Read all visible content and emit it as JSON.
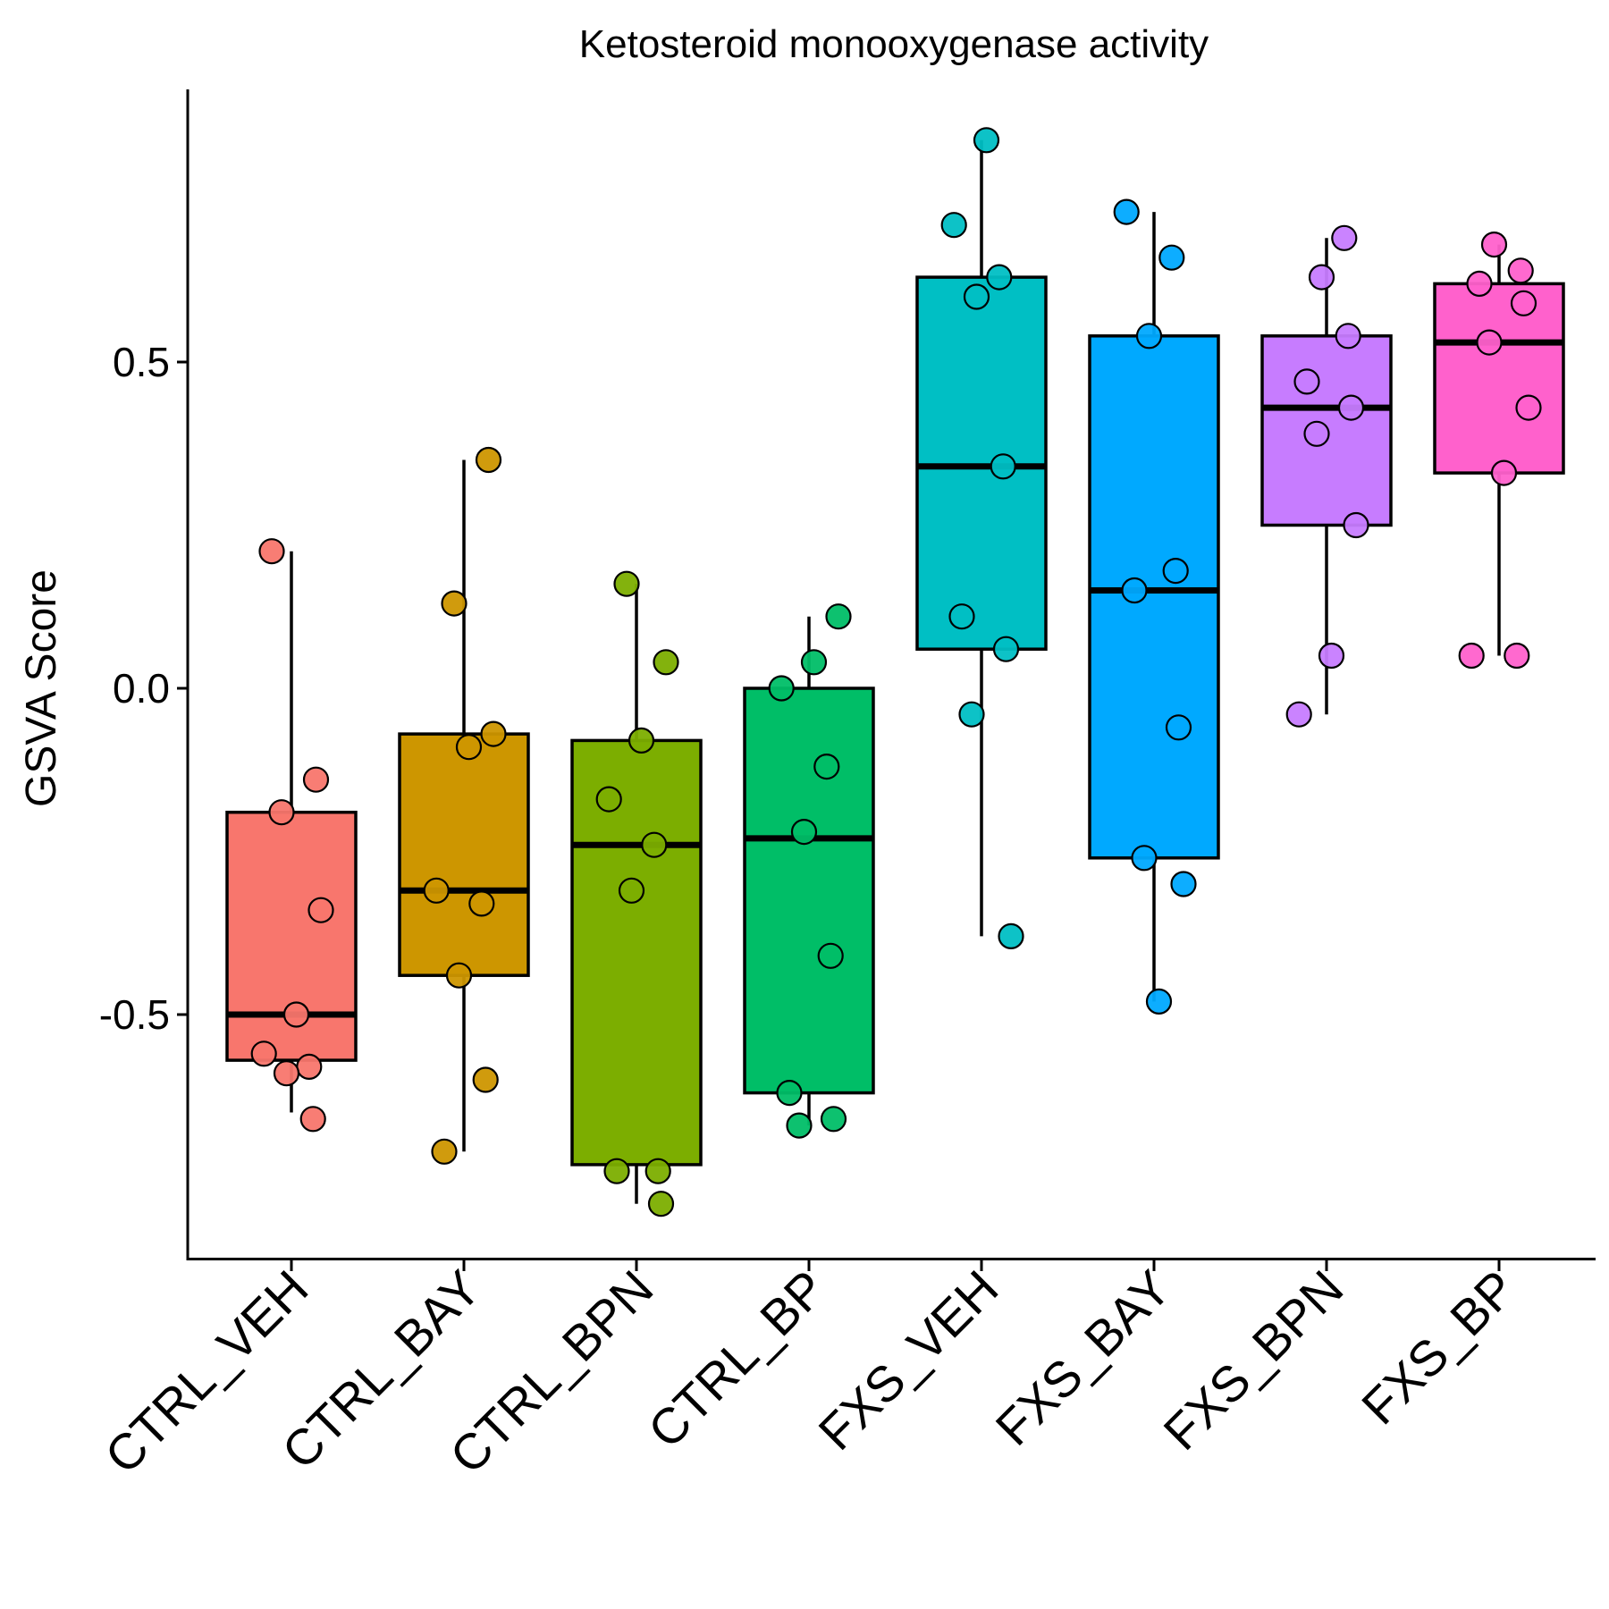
{
  "chart_data": {
    "type": "box",
    "title": "Ketosteroid monooxygenase activity",
    "xlabel": "",
    "ylabel": "GSVA Score",
    "ylim": [
      -0.86,
      0.88
    ],
    "yticks": [
      -0.5,
      0.0,
      0.5
    ],
    "ytick_labels": [
      "-0.5",
      "0.0",
      "0.5"
    ],
    "grid": false,
    "legend": "none",
    "groups": [
      {
        "name": "CTRL_VEH",
        "color": "#F8766D",
        "box": {
          "min": -0.65,
          "q1": -0.57,
          "median": -0.5,
          "q3": -0.19,
          "max": 0.21
        },
        "points": [
          0.21,
          -0.14,
          -0.19,
          -0.34,
          -0.5,
          -0.56,
          -0.58,
          -0.59,
          -0.66
        ]
      },
      {
        "name": "CTRL_BAY",
        "color": "#CD9600",
        "box": {
          "min": -0.71,
          "q1": -0.44,
          "median": -0.31,
          "q3": -0.07,
          "max": 0.35
        },
        "points": [
          0.35,
          0.13,
          -0.07,
          -0.09,
          -0.31,
          -0.33,
          -0.44,
          -0.6,
          -0.71
        ]
      },
      {
        "name": "CTRL_BPN",
        "color": "#7CAE00",
        "box": {
          "min": -0.79,
          "q1": -0.73,
          "median": -0.24,
          "q3": -0.08,
          "max": 0.16
        },
        "points": [
          0.16,
          0.04,
          -0.08,
          -0.17,
          -0.24,
          -0.31,
          -0.74,
          -0.74,
          -0.79
        ]
      },
      {
        "name": "CTRL_BP",
        "color": "#00BE67",
        "box": {
          "min": -0.67,
          "q1": -0.62,
          "median": -0.23,
          "q3": 0.0,
          "max": 0.11
        },
        "points": [
          0.11,
          0.04,
          0.0,
          -0.12,
          -0.22,
          -0.41,
          -0.62,
          -0.66,
          -0.67
        ]
      },
      {
        "name": "FXS_VEH",
        "color": "#00BFC4",
        "box": {
          "min": -0.38,
          "q1": 0.06,
          "median": 0.34,
          "q3": 0.63,
          "max": 0.84
        },
        "points": [
          0.84,
          0.71,
          0.63,
          0.6,
          0.34,
          0.11,
          0.06,
          -0.04,
          -0.38
        ]
      },
      {
        "name": "FXS_BAY",
        "color": "#00A9FF",
        "box": {
          "min": -0.48,
          "q1": -0.26,
          "median": 0.15,
          "q3": 0.54,
          "max": 0.73
        },
        "points": [
          0.73,
          0.66,
          0.54,
          0.18,
          0.15,
          -0.06,
          -0.26,
          -0.3,
          -0.48
        ]
      },
      {
        "name": "FXS_BPN",
        "color": "#C77CFF",
        "box": {
          "min": -0.04,
          "q1": 0.25,
          "median": 0.43,
          "q3": 0.54,
          "max": 0.69
        },
        "points": [
          0.69,
          0.63,
          0.54,
          0.47,
          0.43,
          0.39,
          0.25,
          0.05,
          -0.04
        ]
      },
      {
        "name": "FXS_BP",
        "color": "#FF61CC",
        "box": {
          "min": 0.05,
          "q1": 0.33,
          "median": 0.53,
          "q3": 0.62,
          "max": 0.68
        },
        "points": [
          0.68,
          0.64,
          0.62,
          0.59,
          0.53,
          0.43,
          0.33,
          0.05,
          0.05
        ]
      }
    ]
  }
}
